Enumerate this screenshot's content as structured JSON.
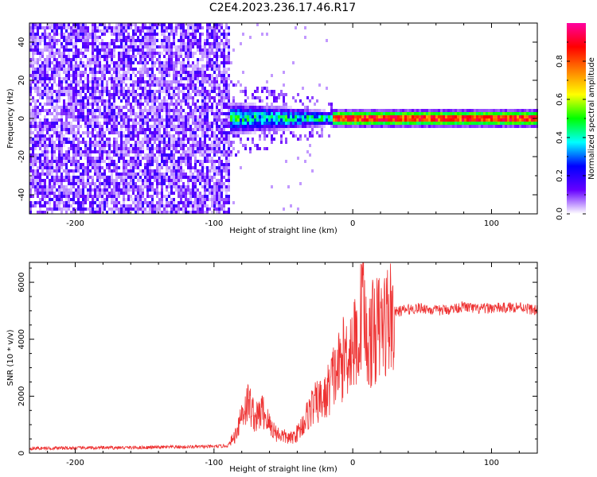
{
  "title": "C2E4.2023.236.17.46.R17",
  "chart_data": [
    {
      "type": "heatmap",
      "xlabel": "Height of straight line (km)",
      "ylabel": "Frequency (Hz)",
      "xlim": [
        -233,
        133
      ],
      "ylim": [
        -50,
        50
      ],
      "xticks": [
        -200,
        -100,
        0,
        100
      ],
      "yticks": [
        -40,
        -20,
        0,
        20,
        40
      ],
      "colorbar": {
        "label": "Normalized spectral amplitude",
        "range": [
          0,
          1
        ],
        "ticks": [
          0.0,
          0.2,
          0.4,
          0.6,
          0.8
        ],
        "colors": [
          "#ffffff",
          "#6600ff",
          "#0000ff",
          "#00ffff",
          "#00ff00",
          "#ffff00",
          "#ff8000",
          "#ff0000",
          "#ff00a0"
        ]
      },
      "description_regions": [
        {
          "x_range": [
            -233,
            -88
          ],
          "freq_range": [
            -50,
            50
          ],
          "amplitude": 0.1,
          "pattern": "noise"
        },
        {
          "x_range": [
            -88,
            -15
          ],
          "freq_center": 0,
          "freq_halfwidth": 9,
          "amplitude": 0.45,
          "pattern": "broadening-signal"
        },
        {
          "x_range": [
            -15,
            133
          ],
          "freq_center": 0,
          "freq_halfwidth": 3,
          "amplitude": 0.95,
          "pattern": "narrow-line"
        }
      ]
    },
    {
      "type": "line",
      "xlabel": "Height of straight line (km)",
      "ylabel": "SNR (10 * v/v)",
      "xlim": [
        -233,
        133
      ],
      "ylim": [
        0,
        6700
      ],
      "xticks": [
        -200,
        -100,
        0,
        100
      ],
      "yticks": [
        0,
        2000,
        4000,
        6000
      ],
      "color": "#ee3333",
      "series": [
        {
          "name": "SNR",
          "x": [
            -233,
            -200,
            -150,
            -100,
            -90,
            -85,
            -80,
            -75,
            -70,
            -65,
            -60,
            -55,
            -50,
            -45,
            -40,
            -35,
            -30,
            -25,
            -20,
            -15,
            -10,
            -5,
            0,
            5,
            7,
            10,
            15,
            20,
            25,
            30,
            40,
            50,
            60,
            70,
            80,
            90,
            100,
            110,
            120,
            133
          ],
          "values": [
            170,
            180,
            200,
            230,
            260,
            600,
            1400,
            1800,
            1200,
            1500,
            1000,
            700,
            600,
            500,
            700,
            1100,
            1600,
            1800,
            1900,
            2600,
            3000,
            3500,
            3800,
            4000,
            6000,
            3700,
            4300,
            4400,
            4700,
            4950,
            5050,
            5100,
            5000,
            5050,
            5150,
            5050,
            5100,
            5100,
            5150,
            5000
          ]
        }
      ]
    }
  ]
}
